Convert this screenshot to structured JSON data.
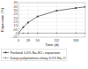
{
  "chart_data": {
    "type": "line",
    "title": "",
    "xlabel": "Time (d)",
    "ylabel": "Expansion (%)",
    "x": [
      0,
      14,
      28,
      56,
      112,
      168,
      196
    ],
    "series": [
      {
        "name": "Portland 1.0% Na₂SO₄ expansion",
        "color": "#444444",
        "marker": "square",
        "values": [
          0.0,
          0.08,
          0.14,
          0.22,
          0.295,
          0.33,
          0.345
        ]
      },
      {
        "name": "Davya polyalumino-siloxy 0.5% Na₂O",
        "color": "#999999",
        "marker": "circle",
        "values": [
          0.0,
          0.002,
          0.003,
          0.003,
          0.003,
          0.003,
          0.003
        ]
      }
    ],
    "xlim": [
      0,
      196
    ],
    "ylim": [
      -0.05,
      0.4
    ],
    "xticks": [
      0,
      28,
      56,
      112,
      168
    ],
    "yticks": [
      {
        "value": -0.05,
        "label": "-.05"
      },
      {
        "value": 0.0,
        "label": ".0"
      },
      {
        "value": 0.05,
        "label": ".05"
      },
      {
        "value": 0.1,
        "label": ".10"
      },
      {
        "value": 0.15,
        "label": ".15"
      },
      {
        "value": 0.2,
        "label": ".20"
      },
      {
        "value": 0.25,
        "label": ".25"
      },
      {
        "value": 0.3,
        "label": ".30"
      },
      {
        "value": 0.35,
        "label": ".35"
      },
      {
        "value": 0.4,
        "label": ".40"
      }
    ],
    "grid": true,
    "legend": "bottom"
  }
}
